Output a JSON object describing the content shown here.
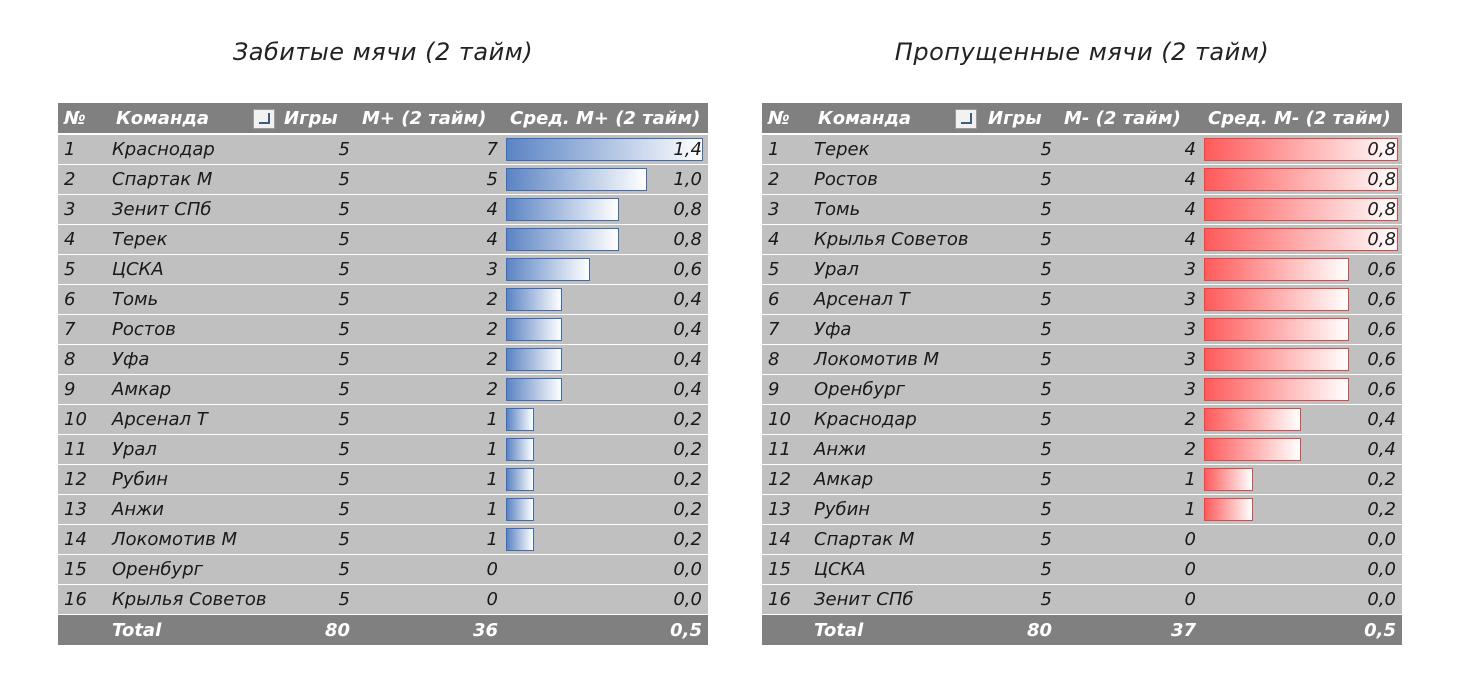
{
  "left": {
    "title": "Забитые мячи (2 тайм)",
    "headers": {
      "rank": "№",
      "team": "Команда",
      "games": "Игры",
      "goals": "M+ (2 тайм)",
      "avg": "Сред. М+ (2 тайм)"
    },
    "rows": [
      {
        "rank": "1",
        "team": "Краснодар",
        "games": "5",
        "goals": "7",
        "avg": "1,4",
        "avg_value": 1.4
      },
      {
        "rank": "2",
        "team": "Спартак М",
        "games": "5",
        "goals": "5",
        "avg": "1,0",
        "avg_value": 1.0
      },
      {
        "rank": "3",
        "team": "Зенит СПб",
        "games": "5",
        "goals": "4",
        "avg": "0,8",
        "avg_value": 0.8
      },
      {
        "rank": "4",
        "team": "Терек",
        "games": "5",
        "goals": "4",
        "avg": "0,8",
        "avg_value": 0.8
      },
      {
        "rank": "5",
        "team": "ЦСКА",
        "games": "5",
        "goals": "3",
        "avg": "0,6",
        "avg_value": 0.6
      },
      {
        "rank": "6",
        "team": "Томь",
        "games": "5",
        "goals": "2",
        "avg": "0,4",
        "avg_value": 0.4
      },
      {
        "rank": "7",
        "team": "Ростов",
        "games": "5",
        "goals": "2",
        "avg": "0,4",
        "avg_value": 0.4
      },
      {
        "rank": "8",
        "team": "Уфа",
        "games": "5",
        "goals": "2",
        "avg": "0,4",
        "avg_value": 0.4
      },
      {
        "rank": "9",
        "team": "Амкар",
        "games": "5",
        "goals": "2",
        "avg": "0,4",
        "avg_value": 0.4
      },
      {
        "rank": "10",
        "team": "Арсенал Т",
        "games": "5",
        "goals": "1",
        "avg": "0,2",
        "avg_value": 0.2
      },
      {
        "rank": "11",
        "team": "Урал",
        "games": "5",
        "goals": "1",
        "avg": "0,2",
        "avg_value": 0.2
      },
      {
        "rank": "12",
        "team": "Рубин",
        "games": "5",
        "goals": "1",
        "avg": "0,2",
        "avg_value": 0.2
      },
      {
        "rank": "13",
        "team": "Анжи",
        "games": "5",
        "goals": "1",
        "avg": "0,2",
        "avg_value": 0.2
      },
      {
        "rank": "14",
        "team": "Локомотив М",
        "games": "5",
        "goals": "1",
        "avg": "0,2",
        "avg_value": 0.2
      },
      {
        "rank": "15",
        "team": "Оренбург",
        "games": "5",
        "goals": "0",
        "avg": "0,0",
        "avg_value": 0.0
      },
      {
        "rank": "16",
        "team": "Крылья Советов",
        "games": "5",
        "goals": "0",
        "avg": "0,0",
        "avg_value": 0.0
      }
    ],
    "total": {
      "label": "Total",
      "games": "80",
      "goals": "36",
      "avg": "0,5"
    },
    "bar_color": "#4472c4"
  },
  "right": {
    "title": "Пропущенные мячи (2 тайм)",
    "headers": {
      "rank": "№",
      "team": "Команда",
      "games": "Игры",
      "goals": "M- (2 тайм)",
      "avg": "Сред. М- (2 тайм)"
    },
    "rows": [
      {
        "rank": "1",
        "team": "Терек",
        "games": "5",
        "goals": "4",
        "avg": "0,8",
        "avg_value": 0.8
      },
      {
        "rank": "2",
        "team": "Ростов",
        "games": "5",
        "goals": "4",
        "avg": "0,8",
        "avg_value": 0.8
      },
      {
        "rank": "3",
        "team": "Томь",
        "games": "5",
        "goals": "4",
        "avg": "0,8",
        "avg_value": 0.8
      },
      {
        "rank": "4",
        "team": "Крылья Советов",
        "games": "5",
        "goals": "4",
        "avg": "0,8",
        "avg_value": 0.8
      },
      {
        "rank": "5",
        "team": "Урал",
        "games": "5",
        "goals": "3",
        "avg": "0,6",
        "avg_value": 0.6
      },
      {
        "rank": "6",
        "team": "Арсенал Т",
        "games": "5",
        "goals": "3",
        "avg": "0,6",
        "avg_value": 0.6
      },
      {
        "rank": "7",
        "team": "Уфа",
        "games": "5",
        "goals": "3",
        "avg": "0,6",
        "avg_value": 0.6
      },
      {
        "rank": "8",
        "team": "Локомотив М",
        "games": "5",
        "goals": "3",
        "avg": "0,6",
        "avg_value": 0.6
      },
      {
        "rank": "9",
        "team": "Оренбург",
        "games": "5",
        "goals": "3",
        "avg": "0,6",
        "avg_value": 0.6
      },
      {
        "rank": "10",
        "team": "Краснодар",
        "games": "5",
        "goals": "2",
        "avg": "0,4",
        "avg_value": 0.4
      },
      {
        "rank": "11",
        "team": "Анжи",
        "games": "5",
        "goals": "2",
        "avg": "0,4",
        "avg_value": 0.4
      },
      {
        "rank": "12",
        "team": "Амкар",
        "games": "5",
        "goals": "1",
        "avg": "0,2",
        "avg_value": 0.2
      },
      {
        "rank": "13",
        "team": "Рубин",
        "games": "5",
        "goals": "1",
        "avg": "0,2",
        "avg_value": 0.2
      },
      {
        "rank": "14",
        "team": "Спартак М",
        "games": "5",
        "goals": "0",
        "avg": "0,0",
        "avg_value": 0.0
      },
      {
        "rank": "15",
        "team": "ЦСКА",
        "games": "5",
        "goals": "0",
        "avg": "0,0",
        "avg_value": 0.0
      },
      {
        "rank": "16",
        "team": "Зенит СПб",
        "games": "5",
        "goals": "0",
        "avg": "0,0",
        "avg_value": 0.0
      }
    ],
    "total": {
      "label": "Total",
      "games": "80",
      "goals": "37",
      "avg": "0,5"
    },
    "bar_color": "#ff4d4d"
  }
}
